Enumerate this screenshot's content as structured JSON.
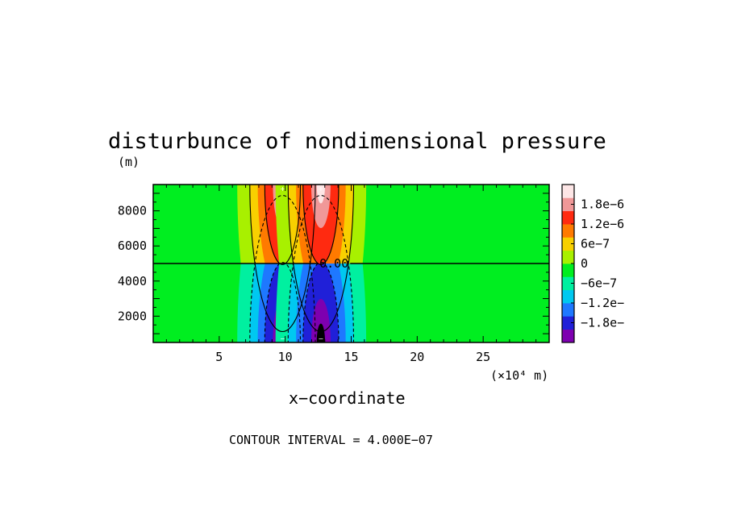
{
  "chart_data": {
    "type": "heatmap",
    "title": "disturbunce of nondimensional pressure",
    "ylabel_unit": "(m)",
    "xlabel": "x−coordinate",
    "xlabel_unit": "(×10⁴ m)",
    "xlim": [
      0,
      30
    ],
    "ylim": [
      500,
      9500
    ],
    "x_ticks": [
      5,
      10,
      15,
      20,
      25
    ],
    "x_tick_labels": [
      "5",
      "10",
      "15",
      "20",
      "25"
    ],
    "y_ticks": [
      2000,
      4000,
      6000,
      8000
    ],
    "y_tick_labels": [
      "2000",
      "4000",
      "6000",
      "8000"
    ],
    "contour_interval": 4e-07,
    "contour_label": "0.00",
    "zero_line_y": 5000,
    "footer": "CONTOUR INTERVAL = 4.000E−07",
    "features": [
      {
        "type": "max",
        "x": 9.8,
        "y": 9500,
        "value": 2e-06
      },
      {
        "type": "max",
        "x": 12.7,
        "y": 9500,
        "value": 2e-06
      },
      {
        "type": "min",
        "x": 9.8,
        "y": 500,
        "value": -2e-06
      },
      {
        "type": "min",
        "x": 12.7,
        "y": 500,
        "value": -2e-06
      }
    ],
    "colorbar": {
      "levels": [
        -2e-06,
        -1.6e-06,
        -1.2e-06,
        -8e-07,
        -4e-07,
        0,
        4e-07,
        8e-07,
        1.2e-06,
        1.6e-06,
        2e-06
      ],
      "colors": [
        "#7e00b0",
        "#2020d8",
        "#1e78ff",
        "#00c8f0",
        "#00f0a0",
        "#00ee20",
        "#a8f000",
        "#f8d000",
        "#ff7a00",
        "#ff2a10",
        "#f09898",
        "#fde6e6"
      ],
      "labels": [
        {
          "text": "1.8e−6",
          "value": 1.8e-06
        },
        {
          "text": "1.2e−6",
          "value": 1.2e-06
        },
        {
          "text": "6e−7",
          "value": 6e-07
        },
        {
          "text": "0",
          "value": 0
        },
        {
          "text": "−6e−7",
          "value": -6e-07
        },
        {
          "text": "−1.2e−",
          "value": -1.2e-06
        },
        {
          "text": "−1.8e−",
          "value": -1.8e-06
        }
      ]
    }
  }
}
